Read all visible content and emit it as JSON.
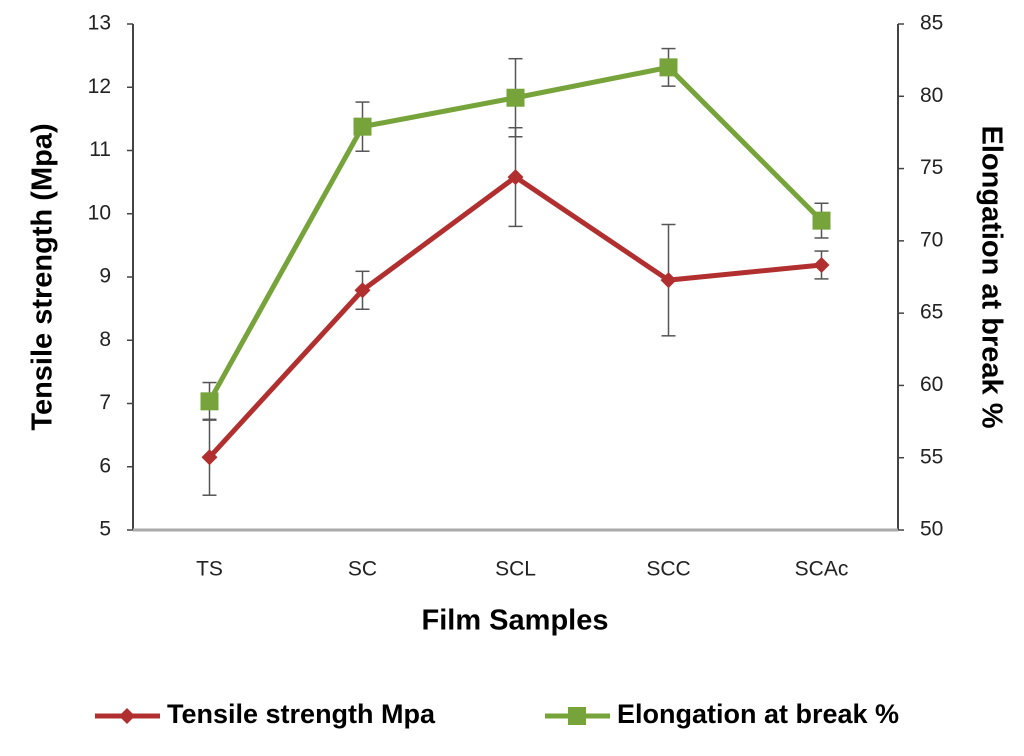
{
  "chart_data": {
    "type": "line",
    "x_label": "Film Samples",
    "y_label": "Tensile strength (Mpa)",
    "y2_label": "Elongation at break %",
    "categories": [
      "TS",
      "SC",
      "SCL",
      "SCC",
      "SCAc"
    ],
    "series": [
      {
        "name": "Tensile strength Mpa",
        "color": "#b1302f",
        "marker": "diamond",
        "axis": "y",
        "values": [
          6.15,
          8.79,
          10.58,
          8.95,
          9.19
        ],
        "errors": [
          0.6,
          0.3,
          0.78,
          0.88,
          0.22
        ]
      },
      {
        "name": "Elongation at break %",
        "color": "#76a33a",
        "marker": "square",
        "axis": "y2",
        "values": [
          58.9,
          77.9,
          79.9,
          82,
          71.4
        ],
        "errors": [
          1.3,
          1.7,
          2.7,
          1.3,
          1.2
        ]
      }
    ],
    "ylim": [
      5,
      13
    ],
    "yticks": [
      5,
      6,
      7,
      8,
      9,
      10,
      11,
      12,
      13
    ],
    "y2lim": [
      50,
      85
    ],
    "y2ticks": [
      50,
      55,
      60,
      65,
      70,
      75,
      80,
      85
    ],
    "grid": false,
    "legend": "bottom"
  }
}
